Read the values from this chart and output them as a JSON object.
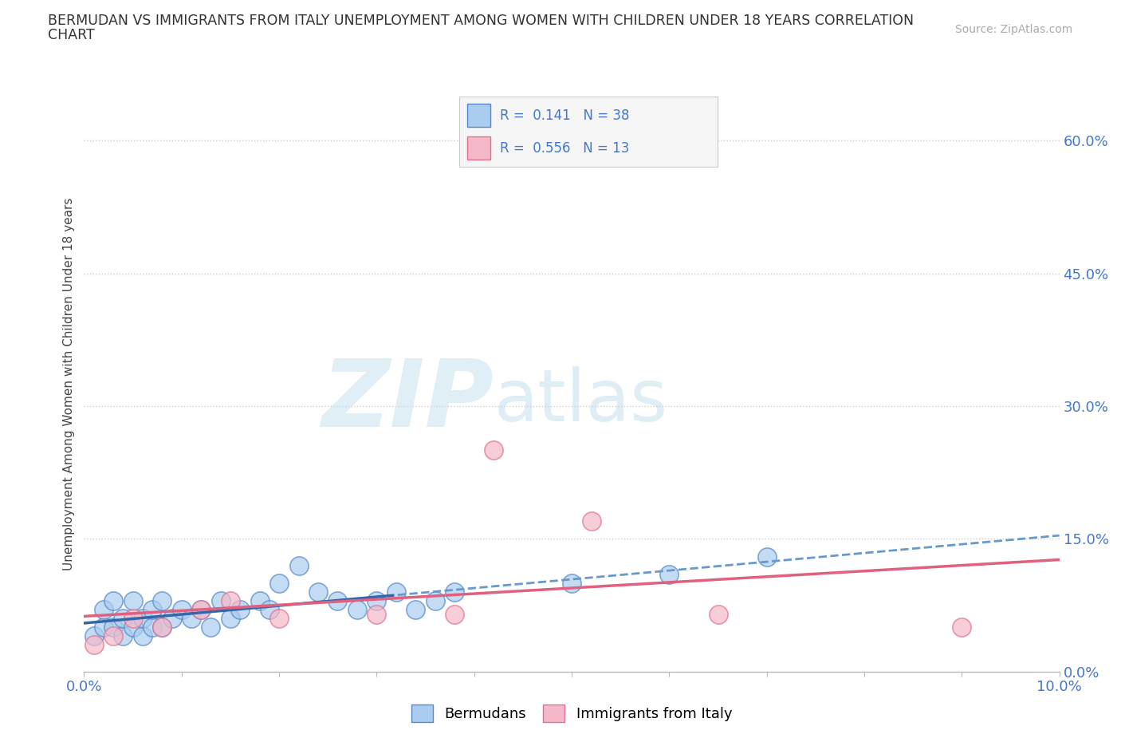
{
  "title_line1": "BERMUDAN VS IMMIGRANTS FROM ITALY UNEMPLOYMENT AMONG WOMEN WITH CHILDREN UNDER 18 YEARS CORRELATION",
  "title_line2": "CHART",
  "source": "Source: ZipAtlas.com",
  "ylabel": "Unemployment Among Women with Children Under 18 years",
  "bermudans_x": [
    0.001,
    0.002,
    0.002,
    0.003,
    0.003,
    0.004,
    0.004,
    0.005,
    0.005,
    0.006,
    0.006,
    0.007,
    0.007,
    0.008,
    0.008,
    0.009,
    0.01,
    0.011,
    0.012,
    0.013,
    0.014,
    0.015,
    0.016,
    0.018,
    0.019,
    0.02,
    0.022,
    0.024,
    0.026,
    0.028,
    0.03,
    0.032,
    0.034,
    0.036,
    0.038,
    0.05,
    0.06,
    0.07
  ],
  "bermudans_y": [
    0.04,
    0.05,
    0.07,
    0.05,
    0.08,
    0.04,
    0.06,
    0.05,
    0.08,
    0.04,
    0.06,
    0.05,
    0.07,
    0.05,
    0.08,
    0.06,
    0.07,
    0.06,
    0.07,
    0.05,
    0.08,
    0.06,
    0.07,
    0.08,
    0.07,
    0.1,
    0.12,
    0.09,
    0.08,
    0.07,
    0.08,
    0.09,
    0.07,
    0.08,
    0.09,
    0.1,
    0.11,
    0.13
  ],
  "italy_x": [
    0.001,
    0.003,
    0.005,
    0.008,
    0.012,
    0.015,
    0.02,
    0.03,
    0.038,
    0.042,
    0.052,
    0.065,
    0.09
  ],
  "italy_y": [
    0.03,
    0.04,
    0.06,
    0.05,
    0.07,
    0.08,
    0.06,
    0.065,
    0.065,
    0.25,
    0.17,
    0.065,
    0.05
  ],
  "berm_color": "#aaccee",
  "berm_edge": "#5588cc",
  "italy_color": "#f5b8c8",
  "italy_edge": "#e07090",
  "berm_trend_solid_color": "#3366aa",
  "berm_trend_dash_color": "#6699cc",
  "italy_trend_color": "#e06080",
  "berm_R": 0.141,
  "berm_N": 38,
  "italy_R": 0.556,
  "italy_N": 13,
  "xlim": [
    0.0,
    0.1
  ],
  "ylim": [
    0.0,
    0.65
  ],
  "yticks": [
    0.0,
    0.15,
    0.3,
    0.45,
    0.6
  ],
  "ytick_labels": [
    "0.0%",
    "15.0%",
    "30.0%",
    "45.0%",
    "60.0%"
  ],
  "xticks": [
    0.0,
    0.01,
    0.02,
    0.03,
    0.04,
    0.05,
    0.06,
    0.07,
    0.08,
    0.09,
    0.1
  ],
  "grid_color": "#cccccc",
  "grid_style": ":",
  "tick_color": "#4477cc",
  "title_color": "#333333",
  "source_color": "#aaaaaa",
  "legend_box_color": "#f5f5f5",
  "legend_box_edge": "#cccccc"
}
